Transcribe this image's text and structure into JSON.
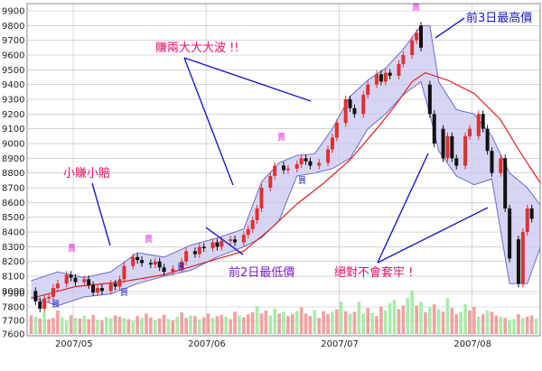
{
  "chart_data": {
    "type": "candlestick",
    "y_ticks": [
      "9900",
      "9800",
      "9700",
      "9600",
      "9500",
      "9400",
      "9300",
      "9200",
      "9100",
      "9000",
      "8900",
      "8800",
      "8700",
      "8600",
      "8500",
      "8400",
      "8300",
      "8200",
      "8100",
      "8000",
      "7900",
      "7800",
      "7700",
      "7600"
    ],
    "price_range": [
      7990,
      9900
    ],
    "volume_ticks": [
      "7800",
      "7700",
      "7600"
    ],
    "x_labels": [
      "2007/05",
      "2007/06",
      "2007/07",
      "2007/08"
    ],
    "x_label_positions": [
      10,
      40,
      70,
      100
    ],
    "n": 115,
    "colors": {
      "up": "#e03030",
      "down": "#111111",
      "band_fill": "#c8c8f0",
      "band_line": "#6a6ad0",
      "ma_line": "#e02020",
      "volume_up": "#f4a0a0",
      "volume_down": "#a8ecaa",
      "grid": "#bbbbbb",
      "arrow": "#1a1acc"
    },
    "candles": [
      {
        "i": 1,
        "o": 8000,
        "c": 7930
      },
      {
        "i": 2,
        "o": 7930,
        "c": 7880
      },
      {
        "i": 3,
        "o": 7880,
        "c": 7950
      },
      {
        "i": 4,
        "o": 7950,
        "c": 7960
      },
      {
        "i": 5,
        "o": 7960,
        "c": 8020
      },
      {
        "i": 6,
        "o": 8020,
        "c": 8050
      },
      {
        "i": 8,
        "o": 8050,
        "c": 8110
      },
      {
        "i": 9,
        "o": 8110,
        "c": 8090
      },
      {
        "i": 10,
        "o": 8090,
        "c": 8060
      },
      {
        "i": 12,
        "o": 8060,
        "c": 8080
      },
      {
        "i": 13,
        "o": 8080,
        "c": 8040
      },
      {
        "i": 14,
        "o": 8040,
        "c": 7990
      },
      {
        "i": 15,
        "o": 7990,
        "c": 8020
      },
      {
        "i": 16,
        "o": 8020,
        "c": 8000
      },
      {
        "i": 18,
        "o": 8000,
        "c": 8050
      },
      {
        "i": 19,
        "o": 8050,
        "c": 8030
      },
      {
        "i": 20,
        "o": 8030,
        "c": 8080
      },
      {
        "i": 21,
        "o": 8080,
        "c": 8170
      },
      {
        "i": 23,
        "o": 8170,
        "c": 8230
      },
      {
        "i": 24,
        "o": 8230,
        "c": 8210
      },
      {
        "i": 25,
        "o": 8210,
        "c": 8190
      },
      {
        "i": 27,
        "o": 8190,
        "c": 8180
      },
      {
        "i": 28,
        "o": 8180,
        "c": 8200
      },
      {
        "i": 29,
        "o": 8200,
        "c": 8160
      },
      {
        "i": 30,
        "o": 8160,
        "c": 8130
      },
      {
        "i": 32,
        "o": 8130,
        "c": 8150
      },
      {
        "i": 34,
        "o": 8150,
        "c": 8200
      },
      {
        "i": 35,
        "o": 8200,
        "c": 8270
      },
      {
        "i": 37,
        "o": 8270,
        "c": 8250
      },
      {
        "i": 38,
        "o": 8250,
        "c": 8300
      },
      {
        "i": 39,
        "o": 8300,
        "c": 8290
      },
      {
        "i": 41,
        "o": 8290,
        "c": 8330
      },
      {
        "i": 42,
        "o": 8330,
        "c": 8300
      },
      {
        "i": 43,
        "o": 8300,
        "c": 8340
      },
      {
        "i": 45,
        "o": 8340,
        "c": 8350
      },
      {
        "i": 46,
        "o": 8350,
        "c": 8330
      },
      {
        "i": 48,
        "o": 8330,
        "c": 8380
      },
      {
        "i": 49,
        "o": 8380,
        "c": 8420
      },
      {
        "i": 50,
        "o": 8420,
        "c": 8480
      },
      {
        "i": 51,
        "o": 8480,
        "c": 8560
      },
      {
        "i": 52,
        "o": 8560,
        "c": 8700
      },
      {
        "i": 54,
        "o": 8700,
        "c": 8780
      },
      {
        "i": 55,
        "o": 8780,
        "c": 8850
      },
      {
        "i": 57,
        "o": 8850,
        "c": 8820
      },
      {
        "i": 58,
        "o": 8820,
        "c": 8830
      },
      {
        "i": 60,
        "o": 8830,
        "c": 8860
      },
      {
        "i": 61,
        "o": 8860,
        "c": 8900
      },
      {
        "i": 62,
        "o": 8900,
        "c": 8880
      },
      {
        "i": 63,
        "o": 8880,
        "c": 8850
      },
      {
        "i": 65,
        "o": 8850,
        "c": 8870
      },
      {
        "i": 67,
        "o": 8870,
        "c": 8960
      },
      {
        "i": 68,
        "o": 8960,
        "c": 9040
      },
      {
        "i": 69,
        "o": 9040,
        "c": 9140
      },
      {
        "i": 71,
        "o": 9140,
        "c": 9300
      },
      {
        "i": 72,
        "o": 9300,
        "c": 9240
      },
      {
        "i": 73,
        "o": 9240,
        "c": 9200
      },
      {
        "i": 75,
        "o": 9200,
        "c": 9330
      },
      {
        "i": 76,
        "o": 9330,
        "c": 9400
      },
      {
        "i": 78,
        "o": 9400,
        "c": 9470
      },
      {
        "i": 79,
        "o": 9470,
        "c": 9420
      },
      {
        "i": 80,
        "o": 9420,
        "c": 9480
      },
      {
        "i": 81,
        "o": 9480,
        "c": 9460
      },
      {
        "i": 83,
        "o": 9460,
        "c": 9540
      },
      {
        "i": 84,
        "o": 9540,
        "c": 9600
      },
      {
        "i": 86,
        "o": 9600,
        "c": 9700
      },
      {
        "i": 87,
        "o": 9700,
        "c": 9750
      },
      {
        "i": 88,
        "o": 9800,
        "c": 9650
      },
      {
        "i": 90,
        "o": 9400,
        "c": 9200
      },
      {
        "i": 91,
        "o": 9200,
        "c": 9000
      },
      {
        "i": 93,
        "o": 9100,
        "c": 8900
      },
      {
        "i": 94,
        "o": 8900,
        "c": 9050
      },
      {
        "i": 95,
        "o": 9050,
        "c": 8900
      },
      {
        "i": 96,
        "o": 8900,
        "c": 8850
      },
      {
        "i": 98,
        "o": 8850,
        "c": 9050
      },
      {
        "i": 99,
        "o": 9050,
        "c": 9100
      },
      {
        "i": 101,
        "o": 9050,
        "c": 9200
      },
      {
        "i": 102,
        "o": 9200,
        "c": 9100
      },
      {
        "i": 103,
        "o": 9100,
        "c": 8950
      },
      {
        "i": 104,
        "o": 8950,
        "c": 8800
      },
      {
        "i": 106,
        "o": 8800,
        "c": 8900
      },
      {
        "i": 107,
        "o": 8900,
        "c": 8560
      },
      {
        "i": 108,
        "o": 8560,
        "c": 8220
      },
      {
        "i": 110,
        "o": 8350,
        "c": 8050
      },
      {
        "i": 111,
        "o": 8050,
        "c": 8400
      },
      {
        "i": 112,
        "o": 8400,
        "c": 8560
      },
      {
        "i": 113,
        "o": 8560,
        "c": 8490
      }
    ],
    "upper_band": [
      {
        "i": 0,
        "v": 8070
      },
      {
        "i": 6,
        "v": 8130
      },
      {
        "i": 12,
        "v": 8090
      },
      {
        "i": 18,
        "v": 8130
      },
      {
        "i": 24,
        "v": 8260
      },
      {
        "i": 30,
        "v": 8230
      },
      {
        "i": 36,
        "v": 8310
      },
      {
        "i": 42,
        "v": 8360
      },
      {
        "i": 48,
        "v": 8420
      },
      {
        "i": 52,
        "v": 8740
      },
      {
        "i": 56,
        "v": 8870
      },
      {
        "i": 60,
        "v": 8920
      },
      {
        "i": 64,
        "v": 8930
      },
      {
        "i": 68,
        "v": 9100
      },
      {
        "i": 72,
        "v": 9320
      },
      {
        "i": 76,
        "v": 9430
      },
      {
        "i": 80,
        "v": 9510
      },
      {
        "i": 84,
        "v": 9640
      },
      {
        "i": 88,
        "v": 9800
      },
      {
        "i": 90,
        "v": 9800
      },
      {
        "i": 92,
        "v": 9420
      },
      {
        "i": 96,
        "v": 9230
      },
      {
        "i": 100,
        "v": 9200
      },
      {
        "i": 104,
        "v": 9050
      },
      {
        "i": 108,
        "v": 8800
      },
      {
        "i": 112,
        "v": 8700
      },
      {
        "i": 115,
        "v": 8580
      }
    ],
    "lower_band": [
      {
        "i": 0,
        "v": 7960
      },
      {
        "i": 6,
        "v": 7900
      },
      {
        "i": 12,
        "v": 7960
      },
      {
        "i": 18,
        "v": 7980
      },
      {
        "i": 24,
        "v": 8050
      },
      {
        "i": 30,
        "v": 8100
      },
      {
        "i": 36,
        "v": 8140
      },
      {
        "i": 42,
        "v": 8230
      },
      {
        "i": 48,
        "v": 8300
      },
      {
        "i": 52,
        "v": 8360
      },
      {
        "i": 56,
        "v": 8480
      },
      {
        "i": 60,
        "v": 8780
      },
      {
        "i": 64,
        "v": 8800
      },
      {
        "i": 68,
        "v": 8830
      },
      {
        "i": 72,
        "v": 8900
      },
      {
        "i": 76,
        "v": 9100
      },
      {
        "i": 80,
        "v": 9200
      },
      {
        "i": 84,
        "v": 9330
      },
      {
        "i": 88,
        "v": 9420
      },
      {
        "i": 90,
        "v": 9200
      },
      {
        "i": 92,
        "v": 8950
      },
      {
        "i": 96,
        "v": 8780
      },
      {
        "i": 100,
        "v": 8720
      },
      {
        "i": 104,
        "v": 8760
      },
      {
        "i": 108,
        "v": 8050
      },
      {
        "i": 112,
        "v": 8050
      },
      {
        "i": 115,
        "v": 8300
      }
    ],
    "ma_line": [
      {
        "i": 0,
        "v": 7950
      },
      {
        "i": 10,
        "v": 8030
      },
      {
        "i": 20,
        "v": 8060
      },
      {
        "i": 30,
        "v": 8110
      },
      {
        "i": 40,
        "v": 8200
      },
      {
        "i": 48,
        "v": 8270
      },
      {
        "i": 54,
        "v": 8420
      },
      {
        "i": 60,
        "v": 8590
      },
      {
        "i": 66,
        "v": 8730
      },
      {
        "i": 72,
        "v": 8890
      },
      {
        "i": 78,
        "v": 9100
      },
      {
        "i": 82,
        "v": 9250
      },
      {
        "i": 86,
        "v": 9420
      },
      {
        "i": 89,
        "v": 9480
      },
      {
        "i": 94,
        "v": 9430
      },
      {
        "i": 100,
        "v": 9340
      },
      {
        "i": 106,
        "v": 9160
      },
      {
        "i": 110,
        "v": 8960
      },
      {
        "i": 115,
        "v": 8730
      }
    ],
    "volumes": [
      30,
      28,
      25,
      35,
      24,
      26,
      38,
      27,
      22,
      30,
      26,
      25,
      29,
      24,
      31,
      23,
      22,
      27,
      25,
      30,
      28,
      26,
      24,
      21,
      29,
      26,
      33,
      27,
      23,
      25,
      31,
      24,
      22,
      28,
      35,
      26,
      30,
      29,
      24,
      27,
      33,
      26,
      29,
      31,
      28,
      24,
      36,
      30,
      27,
      32,
      35,
      45,
      33,
      38,
      30,
      41,
      33,
      36,
      29,
      32,
      37,
      43,
      33,
      29,
      38,
      26,
      37,
      32,
      36,
      40,
      52,
      37,
      33,
      36,
      52,
      33,
      42,
      34,
      29,
      44,
      38,
      50,
      55,
      40,
      46,
      58,
      70,
      46,
      52,
      35,
      44,
      48,
      40,
      36,
      58,
      42,
      32,
      36,
      48,
      38,
      44,
      28,
      32,
      38,
      36,
      30,
      28,
      26,
      22,
      24,
      32,
      26,
      28,
      30,
      25
    ],
    "volume_up": [
      1,
      0,
      1,
      0,
      1,
      1,
      1,
      0,
      0,
      1,
      0,
      1,
      0,
      1,
      1,
      0,
      1,
      0,
      0,
      1,
      1,
      0,
      1,
      0,
      1,
      0,
      1,
      1,
      0,
      1,
      1,
      0,
      1,
      0,
      1,
      1,
      0,
      1,
      0,
      1,
      1,
      0,
      1,
      1,
      0,
      1,
      1,
      0,
      1,
      1,
      1,
      0,
      1,
      1,
      0,
      0,
      1,
      0,
      1,
      1,
      0,
      1,
      1,
      1,
      0,
      1,
      1,
      1,
      0,
      1,
      0,
      1,
      0,
      1,
      0,
      0,
      1,
      0,
      1,
      1,
      0,
      0,
      0,
      1,
      1,
      0,
      0,
      1,
      0,
      1,
      0,
      1,
      0,
      1,
      0,
      1,
      1,
      0,
      0,
      1,
      1,
      0,
      1,
      0,
      1,
      1,
      0,
      1,
      0,
      0,
      1,
      0,
      1,
      1,
      0
    ],
    "annotations": {
      "high3": "前3日最高價",
      "big_wave": "賺兩大大大波 !!",
      "small_win": "小賺小賠",
      "low2": "前2日最低價",
      "never_trap": "絕對不會套牢 !"
    },
    "signals": [
      {
        "type": "sell",
        "text": "賣",
        "i": 10
      },
      {
        "type": "buy",
        "text": "買",
        "i": 11
      },
      {
        "type": "sell",
        "text": "賣",
        "i": 28
      },
      {
        "type": "buy",
        "text": "買",
        "i": 23
      },
      {
        "type": "buy",
        "text": "買",
        "i": 38
      },
      {
        "type": "sell",
        "text": "賣",
        "i": 61
      },
      {
        "type": "buy",
        "text": "買",
        "i": 66
      },
      {
        "type": "sell",
        "text": "賣",
        "i": 88
      }
    ]
  }
}
